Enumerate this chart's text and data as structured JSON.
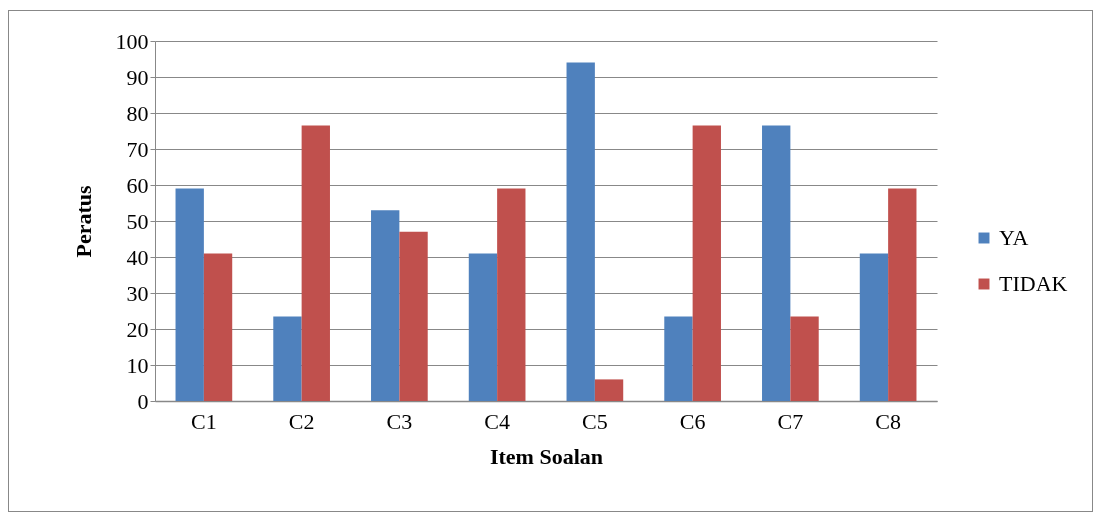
{
  "chart_data": {
    "type": "bar",
    "xlabel": "Item Soalan",
    "ylabel": "Peratus",
    "categories": [
      "C1",
      "C2",
      "C3",
      "C4",
      "C5",
      "C6",
      "C7",
      "C8"
    ],
    "series": [
      {
        "name": "YA",
        "color": "#4f81bd",
        "values": [
          59,
          23.5,
          53,
          41,
          94,
          23.5,
          76.5,
          41
        ]
      },
      {
        "name": "TIDAK",
        "color": "#c0504d",
        "values": [
          41,
          76.5,
          47,
          59,
          6,
          76.5,
          23.5,
          59
        ]
      }
    ],
    "ylim": [
      0,
      100
    ],
    "yticks": [
      0,
      10,
      20,
      30,
      40,
      50,
      60,
      70,
      80,
      90,
      100
    ],
    "grid": "y",
    "legend": "right"
  }
}
